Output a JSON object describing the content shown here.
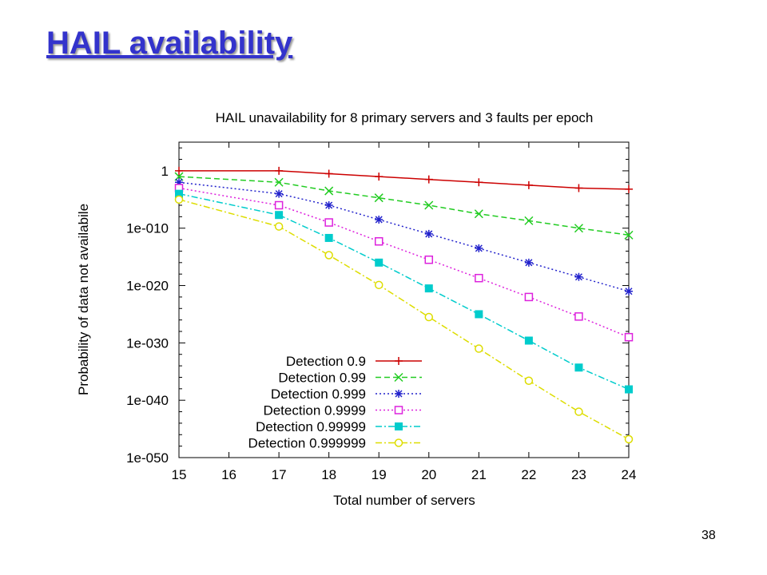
{
  "slide": {
    "title": "HAIL availability",
    "page_number": "38"
  },
  "chart_data": {
    "type": "line",
    "title": "HAIL unavailability for 8 primary servers and 3 faults per epoch",
    "xlabel": "Total number of servers",
    "ylabel": "Probability of data not availabile",
    "x_ticks": [
      "15",
      "16",
      "17",
      "18",
      "19",
      "20",
      "21",
      "22",
      "23",
      "24"
    ],
    "y_ticks": [
      "1",
      "1e-010",
      "1e-020",
      "1e-030",
      "1e-040",
      "1e-050"
    ],
    "xlim": [
      15,
      24
    ],
    "ylim_log10": [
      -50,
      5
    ],
    "y_scale": "log",
    "grid": false,
    "legend_position": "bottom-center",
    "x": [
      15,
      17,
      18,
      19,
      20,
      21,
      22,
      23,
      24
    ],
    "series": [
      {
        "name": "Detection 0.9",
        "color": "#cc0000",
        "dash": "solid",
        "marker": "plus",
        "log10_values": [
          0,
          0,
          -0.5,
          -1,
          -1.5,
          -2,
          -2.5,
          -3,
          -3.2
        ]
      },
      {
        "name": "Detection 0.99",
        "color": "#22cc22",
        "dash": "dashed",
        "marker": "cross",
        "log10_values": [
          -1,
          -2,
          -3.5,
          -4.7,
          -6,
          -7.5,
          -8.7,
          -10,
          -11.2
        ]
      },
      {
        "name": "Detection 0.999",
        "color": "#2222cc",
        "dash": "dotted",
        "marker": "star",
        "log10_values": [
          -2,
          -4,
          -6,
          -8.5,
          -11,
          -13.5,
          -16,
          -18.5,
          -21
        ]
      },
      {
        "name": "Detection 0.9999",
        "color": "#dd22dd",
        "dash": "dotted",
        "marker": "square-open",
        "log10_values": [
          -3,
          -6,
          -9,
          -12.3,
          -15.5,
          -18.7,
          -22,
          -25.4,
          -29
        ]
      },
      {
        "name": "Detection 0.99999",
        "color": "#00cccc",
        "dash": "dashdot",
        "marker": "square-filled",
        "log10_values": [
          -4,
          -7.7,
          -11.7,
          -16,
          -20.5,
          -25,
          -29.6,
          -34.3,
          -38.1
        ]
      },
      {
        "name": "Detection 0.999999",
        "color": "#dddd00",
        "dash": "dashdot",
        "marker": "circle-open",
        "log10_values": [
          -5,
          -9.7,
          -14.7,
          -19.9,
          -25.5,
          -31,
          -36.6,
          -42,
          -46.8
        ]
      }
    ]
  }
}
